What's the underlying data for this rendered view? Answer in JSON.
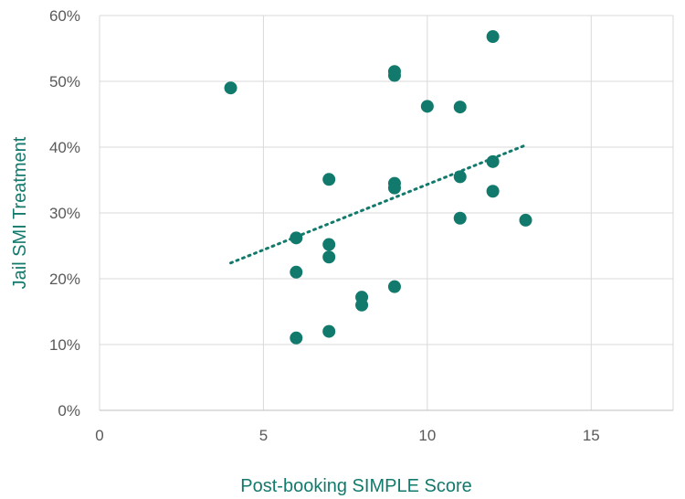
{
  "chart_data": {
    "type": "scatter",
    "xlabel": "Post-booking SIMPLE Score",
    "ylabel": "Jail SMI Treatment",
    "xlim": [
      0,
      17.5
    ],
    "ylim": [
      0,
      0.6
    ],
    "x_ticks": [
      0,
      5,
      10,
      15
    ],
    "x_tick_labels": [
      "0",
      "5",
      "10",
      "15"
    ],
    "y_ticks": [
      0,
      0.1,
      0.2,
      0.3,
      0.4,
      0.5,
      0.6
    ],
    "y_tick_labels": [
      "0%",
      "10%",
      "20%",
      "30%",
      "40%",
      "50%",
      "60%"
    ],
    "grid": true,
    "legend": "none",
    "colors": {
      "marker": "#127a6c",
      "axis_title": "#127a6c",
      "trendline": "#127a6c"
    },
    "series": [
      {
        "points": [
          {
            "x": 4,
            "y": 0.49
          },
          {
            "x": 6,
            "y": 0.262
          },
          {
            "x": 6,
            "y": 0.21
          },
          {
            "x": 6,
            "y": 0.11
          },
          {
            "x": 7,
            "y": 0.351
          },
          {
            "x": 7,
            "y": 0.252
          },
          {
            "x": 7,
            "y": 0.233
          },
          {
            "x": 7,
            "y": 0.12
          },
          {
            "x": 8,
            "y": 0.172
          },
          {
            "x": 8,
            "y": 0.16
          },
          {
            "x": 9,
            "y": 0.515
          },
          {
            "x": 9,
            "y": 0.509
          },
          {
            "x": 9,
            "y": 0.345
          },
          {
            "x": 9,
            "y": 0.338
          },
          {
            "x": 9,
            "y": 0.188
          },
          {
            "x": 10,
            "y": 0.462
          },
          {
            "x": 11,
            "y": 0.461
          },
          {
            "x": 11,
            "y": 0.355
          },
          {
            "x": 11,
            "y": 0.292
          },
          {
            "x": 12,
            "y": 0.568
          },
          {
            "x": 12,
            "y": 0.378
          },
          {
            "x": 12,
            "y": 0.333
          },
          {
            "x": 13,
            "y": 0.289
          }
        ],
        "trendline": {
          "type": "linear",
          "style": "dotted",
          "from": {
            "x": 4,
            "y": 0.224
          },
          "to": {
            "x": 13,
            "y": 0.403
          }
        }
      }
    ]
  }
}
